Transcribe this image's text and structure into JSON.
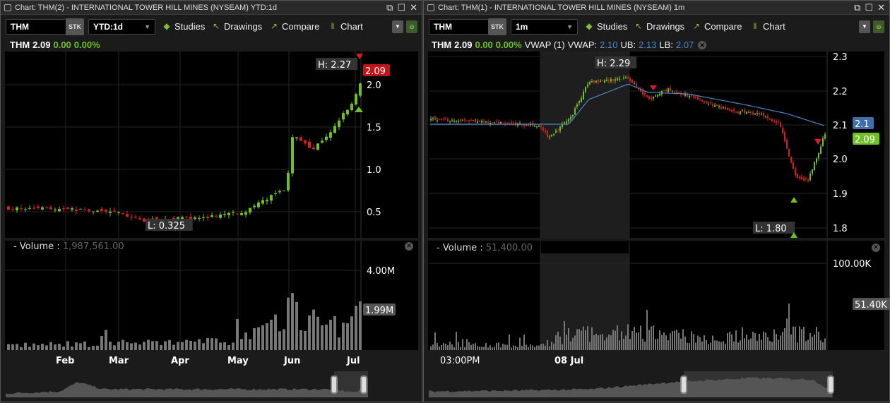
{
  "left": {
    "title": "Chart: THM(2) - INTERNATIONAL TOWER HILL MINES (NYSEAM) YTD:1d",
    "symbol": "THM",
    "sec_type": "STK",
    "timeframe": "YTD:1d",
    "toolbar": {
      "studies": "Studies",
      "drawings": "Drawings",
      "compare": "Compare",
      "chart": "Chart"
    },
    "quote": {
      "symbol": "THM",
      "last": "2.09",
      "change": "0.00",
      "change_pct": "0.00%"
    },
    "price_axis": [
      "2.0",
      "1.5",
      "1.0",
      "0.5"
    ],
    "high_label": "H: 2.27",
    "low_label": "L: 0.325",
    "last_tag": "2.09",
    "volume": {
      "label": "Volume",
      "value": "1,987,561.00",
      "axis": "4.00M",
      "last_tag": "1.99M"
    },
    "time_axis": [
      "Feb",
      "Mar",
      "Apr",
      "May",
      "Jun",
      "Jul"
    ],
    "navigator_window": [
      0.9,
      1.0
    ]
  },
  "right": {
    "title": "Chart: THM(1) - INTERNATIONAL TOWER HILL MINES (NYSEAM) 1m",
    "symbol": "THM",
    "sec_type": "STK",
    "timeframe": "1m",
    "toolbar": {
      "studies": "Studies",
      "drawings": "Drawings",
      "compare": "Compare",
      "chart": "Chart"
    },
    "quote": {
      "symbol": "THM",
      "last": "2.09",
      "change": "0.00",
      "change_pct": "0.00%"
    },
    "vwap": {
      "label": "VWAP (1)",
      "vwap_label": "VWAP:",
      "vwap": "2.10",
      "ub_label": "UB:",
      "ub": "2.13",
      "lb_label": "LB:",
      "lb": "2.07"
    },
    "price_axis": [
      "2.3",
      "2.2",
      "2.1",
      "2.0",
      "1.9",
      "1.8"
    ],
    "high_label": "H: 2.29",
    "low_label": "L: 1.80",
    "vwap_tag": "2.1",
    "last_tag": "2.09",
    "volume": {
      "label": "Volume",
      "value": "51,400.00",
      "axis": "100.00K",
      "last_tag": "51.40K"
    },
    "time_axis": [
      "03:00PM",
      "08 Jul"
    ],
    "navigator_window": [
      0.58,
      0.98
    ]
  },
  "colors": {
    "up": "#6fbf26",
    "down": "#d42020",
    "vwap": "#4c86c6",
    "volume": "#777777"
  },
  "icons": [
    "menu-icon",
    "popout-icon",
    "maximize-icon",
    "close-icon",
    "studies-icon",
    "drawings-cursor-icon",
    "compare-icon",
    "chart-candles-icon",
    "dropdown-icon",
    "link-icon"
  ]
}
